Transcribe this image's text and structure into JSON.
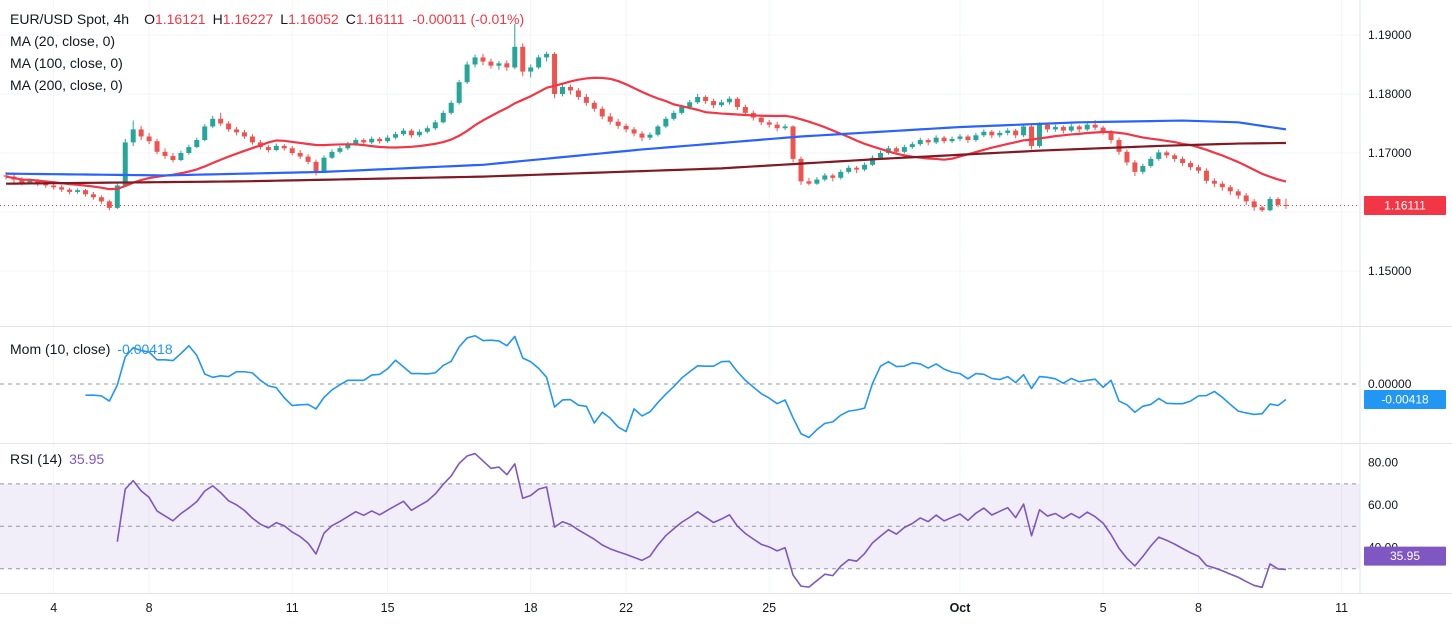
{
  "chart": {
    "title": "EUR/USD Spot, 4h",
    "ohlc": {
      "o_label": "O",
      "o_value": "1.16121",
      "h_label": "H",
      "h_value": "1.16227",
      "l_label": "L",
      "l_value": "1.16052",
      "c_label": "C",
      "c_value": "1.16111",
      "change": "-0.00011 (-0.01%)"
    },
    "ma_legends": [
      "MA (20, close, 0)",
      "MA (100, close, 0)",
      "MA (200, close, 0)"
    ],
    "mom": {
      "name": "Mom (10, close)",
      "value": "-0.00418"
    },
    "rsi": {
      "name": "RSI (14)",
      "value": "35.95"
    }
  },
  "colors": {
    "up": "#26a69a",
    "down": "#ef5350",
    "ma20": "#f23645",
    "ma100": "#2962ff",
    "ma200": "#801922",
    "mom_line": "#2196f3",
    "rsi_line": "#7e57c2",
    "rsi_band": "rgba(126,87,194,0.10)",
    "last_price": "#f23645",
    "text": "#131722",
    "axis_sep": "#e0e3eb",
    "grid": "#f2f4f7",
    "dashed": "#9598a1"
  },
  "chart_data": {
    "type": "candlestick",
    "symbol": "EUR/USD Spot",
    "interval": "4h",
    "price_axis_ticks": [
      {
        "label": "1.19000",
        "value": 1.19
      },
      {
        "label": "1.18000",
        "value": 1.18
      },
      {
        "label": "1.17000",
        "value": 1.17
      },
      {
        "label": "1.15000",
        "value": 1.15
      }
    ],
    "hidden_grid_levels": [
      1.16
    ],
    "last_price": {
      "label": "1.16111",
      "value": 1.16111
    },
    "time_axis_ticks": [
      {
        "label": "4",
        "index": 6
      },
      {
        "label": "8",
        "index": 18
      },
      {
        "label": "11",
        "index": 36
      },
      {
        "label": "15",
        "index": 48
      },
      {
        "label": "18",
        "index": 66
      },
      {
        "label": "22",
        "index": 78
      },
      {
        "label": "25",
        "index": 96
      },
      {
        "label": "Oct",
        "index": 120,
        "bold": true
      },
      {
        "label": "5",
        "index": 138
      },
      {
        "label": "8",
        "index": 150
      },
      {
        "label": "11",
        "index": 168
      }
    ],
    "indicators": {
      "ma20_period": 20,
      "mom": {
        "period": 10,
        "last": {
          "label": "-0.00418",
          "value": -0.00418
        },
        "axis_tick": {
          "label": "0.00000",
          "value": 0
        }
      },
      "rsi": {
        "period": 14,
        "last": {
          "label": "35.95",
          "value": 35.95
        },
        "axis_ticks": [
          {
            "label": "80.00",
            "value": 80
          },
          {
            "label": "60.00",
            "value": 60
          },
          {
            "label": "40.00",
            "value": 40
          }
        ],
        "levels": [
          70,
          50,
          30
        ],
        "band": [
          30,
          70
        ]
      }
    },
    "ma100_anchors": [
      [
        0,
        1.1665
      ],
      [
        20,
        1.1662
      ],
      [
        40,
        1.1668
      ],
      [
        60,
        1.168
      ],
      [
        80,
        1.1706
      ],
      [
        100,
        1.1728
      ],
      [
        120,
        1.1744
      ],
      [
        135,
        1.1752
      ],
      [
        148,
        1.1755
      ],
      [
        155,
        1.1752
      ],
      [
        161,
        1.174
      ]
    ],
    "ma200_anchors": [
      [
        0,
        1.1648
      ],
      [
        30,
        1.1652
      ],
      [
        60,
        1.166
      ],
      [
        90,
        1.1674
      ],
      [
        110,
        1.169
      ],
      [
        130,
        1.1704
      ],
      [
        145,
        1.1712
      ],
      [
        155,
        1.1716
      ],
      [
        161,
        1.1717
      ]
    ],
    "candles_ohlc": [
      [
        1.1662,
        1.1668,
        1.1655,
        1.166
      ],
      [
        1.166,
        1.1664,
        1.165,
        1.1655
      ],
      [
        1.1655,
        1.1659,
        1.1645,
        1.165
      ],
      [
        1.165,
        1.1657,
        1.1647,
        1.1653
      ],
      [
        1.1653,
        1.1656,
        1.1644,
        1.1648
      ],
      [
        1.1648,
        1.1652,
        1.1641,
        1.1645
      ],
      [
        1.1645,
        1.165,
        1.1638,
        1.1642
      ],
      [
        1.1642,
        1.1646,
        1.1634,
        1.1638
      ],
      [
        1.1638,
        1.1641,
        1.163,
        1.1634
      ],
      [
        1.1634,
        1.164,
        1.1631,
        1.1637
      ],
      [
        1.1637,
        1.1639,
        1.1626,
        1.163
      ],
      [
        1.163,
        1.1634,
        1.1621,
        1.1625
      ],
      [
        1.1625,
        1.1628,
        1.1614,
        1.1618
      ],
      [
        1.1618,
        1.1621,
        1.1603,
        1.1607
      ],
      [
        1.1607,
        1.165,
        1.1605,
        1.1645
      ],
      [
        1.1645,
        1.1724,
        1.1643,
        1.1718
      ],
      [
        1.1718,
        1.1755,
        1.1712,
        1.174
      ],
      [
        1.174,
        1.1746,
        1.1722,
        1.1728
      ],
      [
        1.1728,
        1.1734,
        1.1715,
        1.172
      ],
      [
        1.172,
        1.1724,
        1.1698,
        1.1702
      ],
      [
        1.1702,
        1.1708,
        1.169,
        1.1695
      ],
      [
        1.1695,
        1.17,
        1.1684,
        1.1688
      ],
      [
        1.1688,
        1.1704,
        1.1686,
        1.17
      ],
      [
        1.17,
        1.1714,
        1.1697,
        1.171
      ],
      [
        1.171,
        1.1726,
        1.1708,
        1.1722
      ],
      [
        1.1722,
        1.1749,
        1.172,
        1.1745
      ],
      [
        1.1745,
        1.1763,
        1.1742,
        1.1758
      ],
      [
        1.1758,
        1.1768,
        1.1746,
        1.175
      ],
      [
        1.175,
        1.1754,
        1.1736,
        1.174
      ],
      [
        1.174,
        1.1744,
        1.173,
        1.1735
      ],
      [
        1.1735,
        1.1739,
        1.1724,
        1.1728
      ],
      [
        1.1728,
        1.1732,
        1.1714,
        1.1718
      ],
      [
        1.1718,
        1.1722,
        1.1706,
        1.171
      ],
      [
        1.171,
        1.1714,
        1.1701,
        1.1705
      ],
      [
        1.1705,
        1.1716,
        1.1703,
        1.1712
      ],
      [
        1.1712,
        1.1715,
        1.1704,
        1.1708
      ],
      [
        1.1708,
        1.1712,
        1.1696,
        1.17
      ],
      [
        1.17,
        1.1705,
        1.169,
        1.1694
      ],
      [
        1.1694,
        1.1698,
        1.1681,
        1.1685
      ],
      [
        1.1685,
        1.1689,
        1.1662,
        1.1668
      ],
      [
        1.1668,
        1.1696,
        1.1666,
        1.1692
      ],
      [
        1.1692,
        1.1706,
        1.169,
        1.1702
      ],
      [
        1.1702,
        1.1712,
        1.1699,
        1.1708
      ],
      [
        1.1708,
        1.1719,
        1.1705,
        1.1715
      ],
      [
        1.1715,
        1.1726,
        1.1712,
        1.1722
      ],
      [
        1.1722,
        1.1725,
        1.1713,
        1.1718
      ],
      [
        1.1718,
        1.1728,
        1.1715,
        1.1724
      ],
      [
        1.1724,
        1.1727,
        1.1716,
        1.172
      ],
      [
        1.172,
        1.173,
        1.1717,
        1.1726
      ],
      [
        1.1726,
        1.1736,
        1.1723,
        1.1732
      ],
      [
        1.1732,
        1.1742,
        1.1729,
        1.1738
      ],
      [
        1.1738,
        1.1741,
        1.1726,
        1.173
      ],
      [
        1.173,
        1.174,
        1.1727,
        1.1736
      ],
      [
        1.1736,
        1.1746,
        1.1733,
        1.1742
      ],
      [
        1.1742,
        1.1756,
        1.1739,
        1.1752
      ],
      [
        1.1752,
        1.1772,
        1.175,
        1.1768
      ],
      [
        1.1768,
        1.1789,
        1.1765,
        1.1785
      ],
      [
        1.1785,
        1.1824,
        1.1782,
        1.182
      ],
      [
        1.182,
        1.1855,
        1.1817,
        1.185
      ],
      [
        1.185,
        1.1867,
        1.1845,
        1.1862
      ],
      [
        1.1862,
        1.1868,
        1.1849,
        1.1855
      ],
      [
        1.1855,
        1.186,
        1.1843,
        1.1848
      ],
      [
        1.1848,
        1.1856,
        1.1841,
        1.1852
      ],
      [
        1.1852,
        1.1857,
        1.1839,
        1.1845
      ],
      [
        1.1845,
        1.1919,
        1.1842,
        1.188
      ],
      [
        1.188,
        1.1886,
        1.183,
        1.1838
      ],
      [
        1.1838,
        1.185,
        1.1828,
        1.1845
      ],
      [
        1.1845,
        1.1866,
        1.1842,
        1.1862
      ],
      [
        1.1862,
        1.1872,
        1.1855,
        1.1868
      ],
      [
        1.1868,
        1.1871,
        1.1793,
        1.18
      ],
      [
        1.18,
        1.1817,
        1.1796,
        1.1812
      ],
      [
        1.1812,
        1.1816,
        1.1799,
        1.1806
      ],
      [
        1.1806,
        1.181,
        1.179,
        1.1795
      ],
      [
        1.1795,
        1.18,
        1.178,
        1.1785
      ],
      [
        1.1785,
        1.1789,
        1.177,
        1.1775
      ],
      [
        1.1775,
        1.1779,
        1.1757,
        1.1762
      ],
      [
        1.1762,
        1.1768,
        1.1748,
        1.1753
      ],
      [
        1.1753,
        1.1758,
        1.1741,
        1.1746
      ],
      [
        1.1746,
        1.175,
        1.1735,
        1.174
      ],
      [
        1.174,
        1.1744,
        1.1728,
        1.1733
      ],
      [
        1.1733,
        1.1737,
        1.172,
        1.1726
      ],
      [
        1.1726,
        1.1735,
        1.1722,
        1.1731
      ],
      [
        1.1731,
        1.1748,
        1.1728,
        1.1745
      ],
      [
        1.1745,
        1.1762,
        1.1742,
        1.1758
      ],
      [
        1.1758,
        1.1772,
        1.1755,
        1.1768
      ],
      [
        1.1768,
        1.1782,
        1.1765,
        1.1778
      ],
      [
        1.1778,
        1.179,
        1.1774,
        1.1786
      ],
      [
        1.1786,
        1.18,
        1.1783,
        1.1795
      ],
      [
        1.1795,
        1.1798,
        1.1783,
        1.1788
      ],
      [
        1.1788,
        1.1792,
        1.1776,
        1.1781
      ],
      [
        1.1781,
        1.179,
        1.1778,
        1.1786
      ],
      [
        1.1786,
        1.1796,
        1.1782,
        1.1792
      ],
      [
        1.1792,
        1.1795,
        1.1773,
        1.1778
      ],
      [
        1.1778,
        1.1782,
        1.1763,
        1.1768
      ],
      [
        1.1768,
        1.1772,
        1.1755,
        1.176
      ],
      [
        1.176,
        1.1764,
        1.1747,
        1.1752
      ],
      [
        1.1752,
        1.1756,
        1.1743,
        1.1748
      ],
      [
        1.1748,
        1.1753,
        1.1737,
        1.1742
      ],
      [
        1.1742,
        1.1749,
        1.1739,
        1.1745
      ],
      [
        1.1745,
        1.1747,
        1.1684,
        1.169
      ],
      [
        1.169,
        1.1694,
        1.1646,
        1.1652
      ],
      [
        1.1652,
        1.1658,
        1.1645,
        1.1648
      ],
      [
        1.1648,
        1.1659,
        1.1646,
        1.1655
      ],
      [
        1.1655,
        1.1666,
        1.1652,
        1.1662
      ],
      [
        1.1662,
        1.1665,
        1.1652,
        1.1658
      ],
      [
        1.1658,
        1.1672,
        1.1655,
        1.1668
      ],
      [
        1.1668,
        1.1679,
        1.1665,
        1.1675
      ],
      [
        1.1675,
        1.1678,
        1.1666,
        1.1672
      ],
      [
        1.1672,
        1.1684,
        1.1669,
        1.168
      ],
      [
        1.168,
        1.1696,
        1.1678,
        1.1692
      ],
      [
        1.1692,
        1.1704,
        1.1689,
        1.17
      ],
      [
        1.17,
        1.1712,
        1.1697,
        1.1708
      ],
      [
        1.1708,
        1.1711,
        1.1698,
        1.1702
      ],
      [
        1.1702,
        1.1714,
        1.1699,
        1.171
      ],
      [
        1.171,
        1.1719,
        1.1707,
        1.1715
      ],
      [
        1.1715,
        1.1726,
        1.1712,
        1.1722
      ],
      [
        1.1722,
        1.1725,
        1.1713,
        1.1718
      ],
      [
        1.1718,
        1.173,
        1.1715,
        1.1726
      ],
      [
        1.1726,
        1.1729,
        1.1716,
        1.172
      ],
      [
        1.172,
        1.1728,
        1.1717,
        1.1724
      ],
      [
        1.1724,
        1.1732,
        1.172,
        1.1728
      ],
      [
        1.1728,
        1.1731,
        1.1717,
        1.1722
      ],
      [
        1.1722,
        1.1734,
        1.1719,
        1.173
      ],
      [
        1.173,
        1.174,
        1.1727,
        1.1736
      ],
      [
        1.1736,
        1.1739,
        1.1725,
        1.173
      ],
      [
        1.173,
        1.1738,
        1.1726,
        1.1734
      ],
      [
        1.1734,
        1.1742,
        1.173,
        1.1738
      ],
      [
        1.1738,
        1.1741,
        1.1725,
        1.173
      ],
      [
        1.173,
        1.1749,
        1.1727,
        1.1745
      ],
      [
        1.1745,
        1.1748,
        1.1706,
        1.1712
      ],
      [
        1.1712,
        1.1752,
        1.1709,
        1.1748
      ],
      [
        1.1748,
        1.1751,
        1.1735,
        1.174
      ],
      [
        1.174,
        1.1748,
        1.1736,
        1.1744
      ],
      [
        1.1744,
        1.1747,
        1.1733,
        1.1738
      ],
      [
        1.1738,
        1.1749,
        1.1735,
        1.1745
      ],
      [
        1.1745,
        1.1748,
        1.1735,
        1.174
      ],
      [
        1.174,
        1.1752,
        1.1737,
        1.1748
      ],
      [
        1.1748,
        1.1756,
        1.1739,
        1.1743
      ],
      [
        1.1743,
        1.1746,
        1.1731,
        1.1736
      ],
      [
        1.1736,
        1.1739,
        1.1716,
        1.1722
      ],
      [
        1.1722,
        1.1726,
        1.1697,
        1.1702
      ],
      [
        1.1702,
        1.1706,
        1.1679,
        1.1684
      ],
      [
        1.1684,
        1.1688,
        1.1661,
        1.1668
      ],
      [
        1.1668,
        1.1682,
        1.1664,
        1.1678
      ],
      [
        1.1678,
        1.1694,
        1.1675,
        1.169
      ],
      [
        1.169,
        1.1706,
        1.1687,
        1.1701
      ],
      [
        1.1701,
        1.1704,
        1.1691,
        1.1696
      ],
      [
        1.1696,
        1.1699,
        1.1685,
        1.169
      ],
      [
        1.169,
        1.1694,
        1.1678,
        1.1683
      ],
      [
        1.1683,
        1.1687,
        1.1671,
        1.1676
      ],
      [
        1.1676,
        1.168,
        1.1665,
        1.167
      ],
      [
        1.167,
        1.1674,
        1.1648,
        1.16529
      ],
      [
        1.16529,
        1.1657,
        1.1642,
        1.1648
      ],
      [
        1.1648,
        1.1652,
        1.1636,
        1.1642
      ],
      [
        1.1642,
        1.1646,
        1.1629,
        1.1635
      ],
      [
        1.1635,
        1.1639,
        1.1622,
        1.1628
      ],
      [
        1.1628,
        1.1632,
        1.1612,
        1.1618
      ],
      [
        1.1618,
        1.1622,
        1.1602,
        1.1608
      ],
      [
        1.1608,
        1.1611,
        1.16,
        1.1603
      ],
      [
        1.1603,
        1.1626,
        1.1601,
        1.1622
      ],
      [
        1.1622,
        1.1625,
        1.1608,
        1.16121
      ],
      [
        1.16121,
        1.16227,
        1.16052,
        1.16111
      ]
    ]
  }
}
